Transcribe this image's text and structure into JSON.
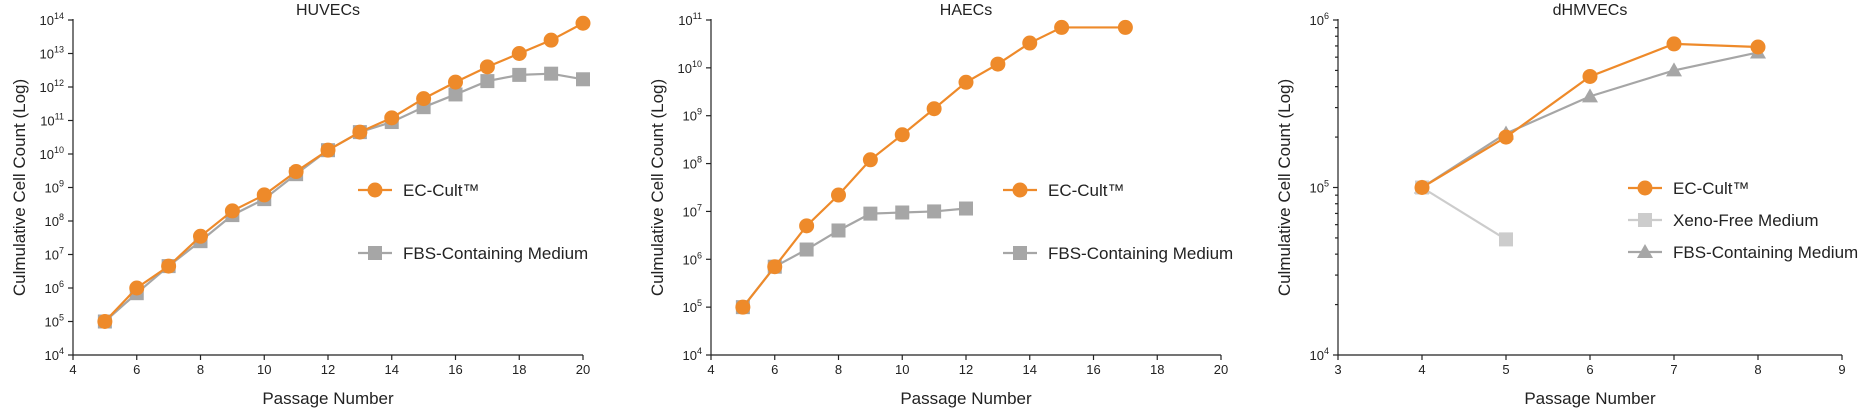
{
  "colors": {
    "orange": "#EE8A2A",
    "gray": "#A6A6A6",
    "lightgray": "#CCCCCC"
  },
  "chart_data": [
    {
      "type": "line",
      "title": "HUVECs",
      "xlabel": "Passage Number",
      "ylabel": "Culmulative Cell Count (Log)",
      "yscale": "log",
      "xlim": [
        4,
        20
      ],
      "ylim_exp": [
        4,
        14
      ],
      "x_ticks": [
        "4",
        "6",
        "8",
        "10",
        "12",
        "14",
        "16",
        "18",
        "20"
      ],
      "y_tick_base": "10",
      "y_tick_exponents": [
        "4",
        "5",
        "6",
        "7",
        "8",
        "9",
        "10",
        "11",
        "12",
        "13",
        "14"
      ],
      "legend_position": "right",
      "series": [
        {
          "name": "EC-Cult™",
          "marker": "circle",
          "color": "#EE8A2A",
          "x": [
            5,
            6,
            7,
            8,
            9,
            10,
            11,
            12,
            13,
            14,
            15,
            16,
            17,
            18,
            19,
            20
          ],
          "y": [
            100000.0,
            1000000.0,
            4500000.0,
            35000000.0,
            200000000.0,
            600000000.0,
            3000000000.0,
            13000000000.0,
            45000000000.0,
            120000000000.0,
            450000000000.0,
            1400000000000.0,
            4000000000000.0,
            10000000000000.0,
            25000000000000.0,
            80000000000000.0
          ]
        },
        {
          "name": "FBS-Containing Medium",
          "marker": "square",
          "color": "#A6A6A6",
          "x": [
            5,
            6,
            7,
            8,
            9,
            10,
            11,
            12,
            13,
            14,
            15,
            16,
            17,
            18,
            19,
            20
          ],
          "y": [
            100000.0,
            700000.0,
            4500000.0,
            25000000.0,
            150000000.0,
            450000000.0,
            2500000000.0,
            13000000000.0,
            45000000000.0,
            90000000000.0,
            250000000000.0,
            600000000000.0,
            1500000000000.0,
            2300000000000.0,
            2500000000000.0,
            1700000000000.0
          ]
        }
      ]
    },
    {
      "type": "line",
      "title": "HAECs",
      "xlabel": "Passage Number",
      "ylabel": "Culmulative Cell Count (Log)",
      "yscale": "log",
      "xlim": [
        4,
        20
      ],
      "ylim_exp": [
        4,
        11
      ],
      "x_ticks": [
        "4",
        "6",
        "8",
        "10",
        "12",
        "14",
        "16",
        "18",
        "20"
      ],
      "y_tick_base": "10",
      "y_tick_exponents": [
        "4",
        "5",
        "6",
        "7",
        "8",
        "9",
        "10",
        "11"
      ],
      "legend_position": "right",
      "series": [
        {
          "name": "EC-Cult™",
          "marker": "circle",
          "color": "#EE8A2A",
          "x": [
            5,
            6,
            7,
            8,
            9,
            10,
            11,
            12,
            13,
            14,
            15,
            17
          ],
          "y": [
            100000.0,
            700000.0,
            5000000.0,
            22000000.0,
            120000000.0,
            400000000.0,
            1400000000.0,
            5000000000.0,
            12000000000.0,
            33000000000.0,
            70000000000.0,
            70000000000.0
          ]
        },
        {
          "name": "FBS-Containing Medium",
          "marker": "square",
          "color": "#A6A6A6",
          "x": [
            5,
            6,
            7,
            8,
            9,
            10,
            11,
            12
          ],
          "y": [
            100000.0,
            700000.0,
            1600000.0,
            4000000.0,
            9000000.0,
            9500000.0,
            10000000.0,
            11500000.0
          ]
        }
      ]
    },
    {
      "type": "line",
      "title": "dHMVECs",
      "xlabel": "Passage Number",
      "ylabel": "Culmulative Cell Count (Log)",
      "yscale": "log",
      "xlim": [
        3,
        9
      ],
      "ylim_exp": [
        4,
        6
      ],
      "x_ticks": [
        "3",
        "4",
        "5",
        "6",
        "7",
        "8",
        "9"
      ],
      "y_tick_base": "10",
      "y_tick_exponents": [
        "4",
        "5",
        "6"
      ],
      "legend_position": "right",
      "series": [
        {
          "name": "EC-Cult™",
          "marker": "circle",
          "color": "#EE8A2A",
          "x": [
            4,
            5,
            6,
            7,
            8
          ],
          "y": [
            100000.0,
            200000.0,
            460000.0,
            720000.0,
            690000.0
          ]
        },
        {
          "name": "Xeno-Free Medium",
          "marker": "square",
          "color": "#CCCCCC",
          "x": [
            4,
            5
          ],
          "y": [
            100000.0,
            49000.0
          ]
        },
        {
          "name": "FBS-Containing Medium",
          "marker": "triangle",
          "color": "#A6A6A6",
          "x": [
            4,
            5,
            6,
            7,
            8
          ],
          "y": [
            100000.0,
            210000.0,
            350000.0,
            500000.0,
            640000.0
          ]
        }
      ]
    }
  ]
}
